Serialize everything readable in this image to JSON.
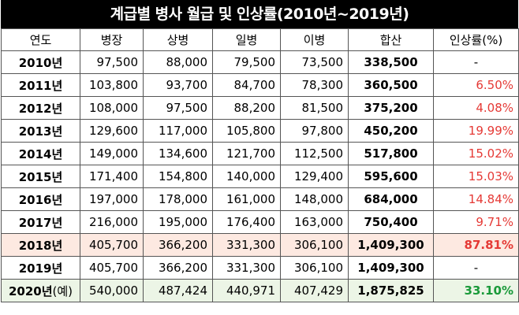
{
  "title": "계급별 병사 월급 및 인상률(2010년~2019년)",
  "table": {
    "headers": [
      "연도",
      "병장",
      "상병",
      "일병",
      "이병",
      "합산",
      "인상률(%)"
    ],
    "rows": [
      {
        "year": "2010년",
        "paren": "",
        "values": [
          "97,500",
          "88,000",
          "79,500",
          "73,500"
        ],
        "sum": "338,500",
        "rate": "-"
      },
      {
        "year": "2011년",
        "paren": "",
        "values": [
          "103,800",
          "93,700",
          "84,700",
          "78,300"
        ],
        "sum": "360,500",
        "rate": "6.50%"
      },
      {
        "year": "2012년",
        "paren": "",
        "values": [
          "108,000",
          "97,500",
          "88,200",
          "81,500"
        ],
        "sum": "375,200",
        "rate": "4.08%"
      },
      {
        "year": "2013년",
        "paren": "",
        "values": [
          "129,600",
          "117,000",
          "105,800",
          "97,800"
        ],
        "sum": "450,200",
        "rate": "19.99%"
      },
      {
        "year": "2014년",
        "paren": "",
        "values": [
          "149,000",
          "134,600",
          "121,700",
          "112,500"
        ],
        "sum": "517,800",
        "rate": "15.02%"
      },
      {
        "year": "2015년",
        "paren": "",
        "values": [
          "171,400",
          "154,800",
          "140,000",
          "129,400"
        ],
        "sum": "595,600",
        "rate": "15.03%"
      },
      {
        "year": "2016년",
        "paren": "",
        "values": [
          "197,000",
          "178,000",
          "161,000",
          "148,000"
        ],
        "sum": "684,000",
        "rate": "14.84%"
      },
      {
        "year": "2017년",
        "paren": "",
        "values": [
          "216,000",
          "195,000",
          "176,400",
          "163,000"
        ],
        "sum": "750,400",
        "rate": "9.71%"
      },
      {
        "year": "2018년",
        "paren": "",
        "values": [
          "405,700",
          "366,200",
          "331,300",
          "306,100"
        ],
        "sum": "1,409,300",
        "rate": "87.81%"
      },
      {
        "year": "2019년",
        "paren": "",
        "values": [
          "405,700",
          "366,200",
          "331,300",
          "306,100"
        ],
        "sum": "1,409,300",
        "rate": "-"
      },
      {
        "year": "2020년",
        "paren": "(예)",
        "values": [
          "540,000",
          "487,424",
          "440,971",
          "407,429"
        ],
        "sum": "1,875,825",
        "rate": "33.10%"
      }
    ]
  },
  "colors": {
    "title_bg": "#000000",
    "title_text": "#ffffff",
    "rate_red": "#e53935",
    "rate_green": "#1a9a3a",
    "highlight_2018": "#fde9e1",
    "highlight_2020": "#ecf5e6"
  },
  "chart_data": {
    "type": "table",
    "title": "계급별 병사 월급 및 인상률(2010년~2019년)",
    "columns": [
      "연도",
      "병장",
      "상병",
      "일병",
      "이병",
      "합산",
      "인상률(%)"
    ],
    "rows": [
      [
        "2010년",
        97500,
        88000,
        79500,
        73500,
        338500,
        null
      ],
      [
        "2011년",
        103800,
        93700,
        84700,
        78300,
        360500,
        6.5
      ],
      [
        "2012년",
        108000,
        97500,
        88200,
        81500,
        375200,
        4.08
      ],
      [
        "2013년",
        129600,
        117000,
        105800,
        97800,
        450200,
        19.99
      ],
      [
        "2014년",
        149000,
        134600,
        121700,
        112500,
        517800,
        15.02
      ],
      [
        "2015년",
        171400,
        154800,
        140000,
        129400,
        595600,
        15.03
      ],
      [
        "2016년",
        197000,
        178000,
        161000,
        148000,
        684000,
        14.84
      ],
      [
        "2017년",
        216000,
        195000,
        176400,
        163000,
        750400,
        9.71
      ],
      [
        "2018년",
        405700,
        366200,
        331300,
        306100,
        1409300,
        87.81
      ],
      [
        "2019년",
        405700,
        366200,
        331300,
        306100,
        1409300,
        null
      ],
      [
        "2020년(예)",
        540000,
        487424,
        440971,
        407429,
        1875825,
        33.1
      ]
    ]
  }
}
